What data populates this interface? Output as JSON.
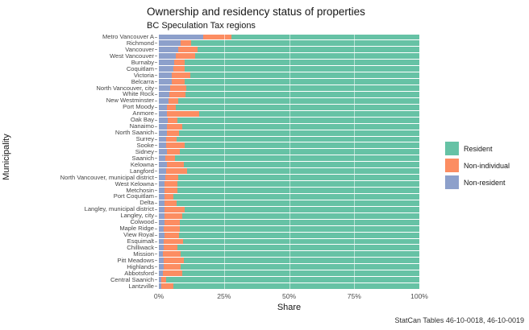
{
  "title": "Ownership and residency status of properties",
  "subtitle": "BC Speculation Tax regions",
  "caption": "StatCan Tables 46-10-0018, 46-10-0019",
  "x_axis": {
    "label": "Share",
    "ticks": [
      "0%",
      "25%",
      "50%",
      "75%",
      "100%"
    ]
  },
  "y_axis": {
    "label": "Municipality"
  },
  "legend": {
    "position": "right",
    "items": [
      {
        "label": "Resident",
        "color": "#66C2A5"
      },
      {
        "label": "Non-individual",
        "color": "#FC8D62"
      },
      {
        "label": "Non-resident",
        "color": "#8DA0CB"
      }
    ]
  },
  "chart_data": {
    "type": "bar",
    "orientation": "horizontal",
    "stacked": true,
    "unit": "%",
    "xlim": [
      0,
      100
    ],
    "grid": "major-vertical",
    "title": "Ownership and residency status of properties",
    "subtitle": "BC Speculation Tax regions",
    "xlabel": "Share",
    "ylabel": "Municipality",
    "categories": [
      "Metro Vancouver A",
      "Richmond",
      "Vancouver",
      "West Vancouver",
      "Burnaby",
      "Coquitlam",
      "Victoria",
      "Belcarra",
      "North Vancouver, city",
      "White Rock",
      "New Westminster",
      "Port Moody",
      "Anmore",
      "Oak Bay",
      "Nanaimo",
      "North Saanich",
      "Surrey",
      "Sooke",
      "Sidney",
      "Saanich",
      "Kelowna",
      "Langford",
      "North Vancouver, municipal district",
      "West Kelowna",
      "Metchosin",
      "Port Coquitlam",
      "Delta",
      "Langley, municipal district",
      "Langley, city",
      "Colwood",
      "Maple Ridge",
      "View Royal",
      "Esquimalt",
      "Chilliwack",
      "Mission",
      "Pitt Meadows",
      "Highlands",
      "Abbotsford",
      "Central Saanich",
      "Lantzville"
    ],
    "series": [
      {
        "name": "Non-resident",
        "color": "#8DA0CB",
        "values": [
          17,
          8.5,
          7.5,
          6.5,
          6,
          5.5,
          4.8,
          5,
          4.2,
          4,
          3.6,
          3.2,
          3,
          3.4,
          3.1,
          3.1,
          2.9,
          2.8,
          3,
          2.5,
          3,
          2.8,
          2.5,
          2.3,
          2.1,
          2.2,
          2.3,
          2.2,
          2.1,
          2.2,
          2,
          2.2,
          1.8,
          1.8,
          1.7,
          1.8,
          1.8,
          1.5,
          1,
          0.9
        ]
      },
      {
        "name": "Non-individual",
        "color": "#FC8D62",
        "values": [
          11,
          4,
          7.5,
          7.5,
          4,
          4.5,
          7.2,
          4.8,
          6.3,
          6.3,
          3.9,
          3.3,
          12.5,
          3.6,
          5.9,
          4.6,
          3.8,
          7.2,
          5.1,
          3.6,
          6.7,
          8,
          4.9,
          4.8,
          4.9,
          3.4,
          4.6,
          7.8,
          6.9,
          5.8,
          6,
          5.5,
          7.5,
          5.2,
          6.8,
          7.7,
          6.7,
          7.5,
          1.8,
          4.8
        ]
      },
      {
        "name": "Resident",
        "color": "#66C2A5",
        "values": [
          72,
          87.5,
          85,
          86,
          90,
          90,
          88,
          90.2,
          89.5,
          89.7,
          92.5,
          93.5,
          84.5,
          93,
          91,
          92.3,
          93.3,
          90,
          91.9,
          93.9,
          90.3,
          89.2,
          92.6,
          92.9,
          93,
          94.4,
          93.1,
          90,
          91,
          92,
          92,
          92.3,
          90.7,
          93,
          91.5,
          90.5,
          91.5,
          91,
          97.2,
          94.3
        ]
      }
    ]
  }
}
